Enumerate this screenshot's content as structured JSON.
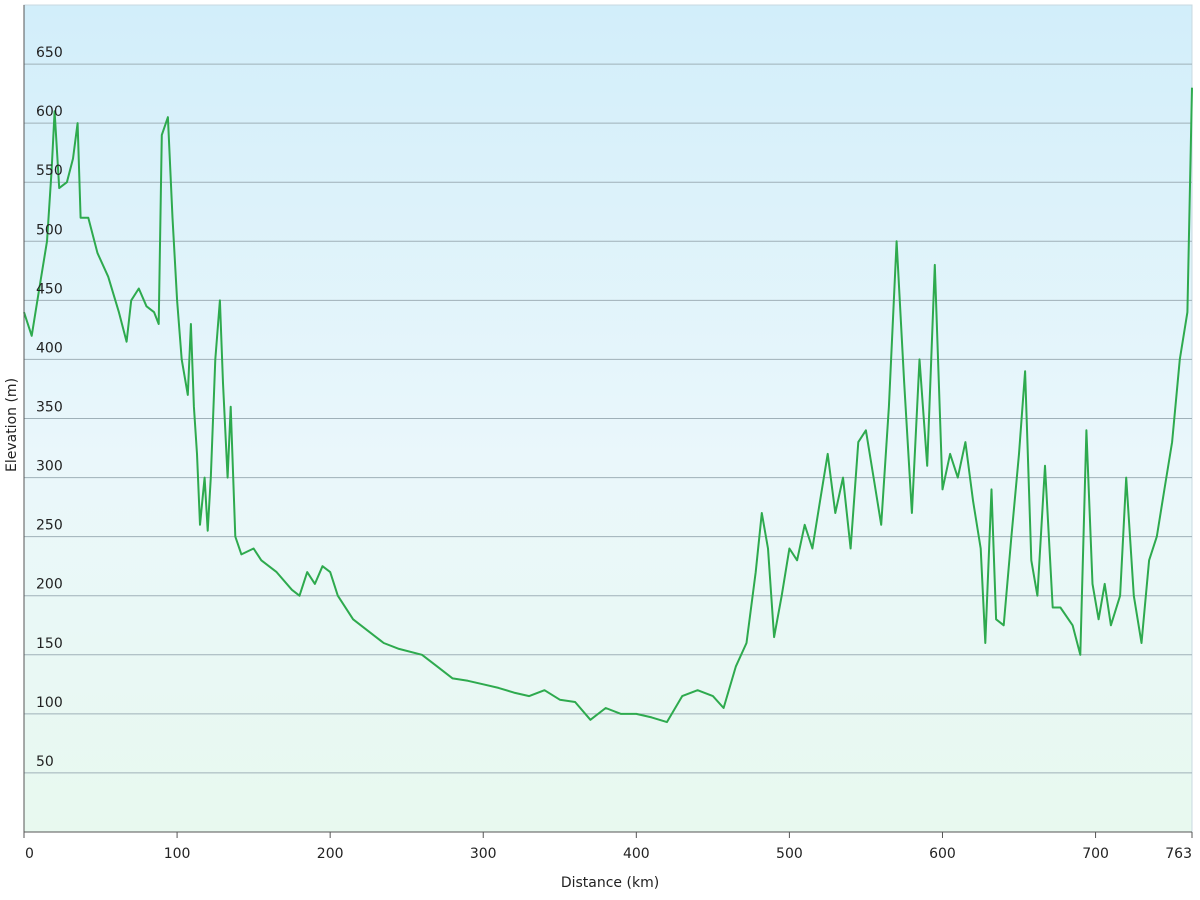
{
  "chart_data": {
    "type": "line",
    "x_label": "Distance  (km)",
    "y_label": "Elevation (m)",
    "color": "#2eaa4e",
    "grid": true,
    "xlim": [
      0,
      763
    ],
    "ylim": [
      0,
      700
    ],
    "xticks": [
      0,
      100,
      200,
      300,
      400,
      500,
      600,
      700,
      763
    ],
    "yticks": [
      50,
      100,
      150,
      200,
      250,
      300,
      350,
      400,
      450,
      500,
      550,
      600,
      650
    ],
    "x": [
      0,
      5,
      10,
      15,
      18,
      20,
      23,
      28,
      32,
      35,
      37,
      42,
      48,
      55,
      62,
      67,
      70,
      75,
      80,
      85,
      88,
      90,
      94,
      97,
      100,
      103,
      107,
      109,
      111,
      113,
      115,
      118,
      120,
      122,
      125,
      128,
      130,
      133,
      135,
      138,
      142,
      150,
      155,
      165,
      175,
      180,
      185,
      190,
      195,
      200,
      205,
      215,
      225,
      235,
      245,
      260,
      270,
      280,
      290,
      300,
      310,
      320,
      330,
      340,
      350,
      360,
      370,
      380,
      390,
      400,
      410,
      420,
      430,
      440,
      450,
      457,
      465,
      472,
      478,
      482,
      486,
      490,
      495,
      500,
      505,
      510,
      515,
      520,
      525,
      530,
      535,
      540,
      545,
      550,
      555,
      560,
      565,
      570,
      575,
      580,
      585,
      590,
      595,
      600,
      605,
      610,
      615,
      620,
      625,
      628,
      632,
      635,
      640,
      645,
      650,
      654,
      658,
      662,
      667,
      672,
      677,
      685,
      690,
      694,
      698,
      702,
      706,
      710,
      716,
      720,
      725,
      730,
      735,
      740,
      745,
      750,
      755,
      760,
      763
    ],
    "values": [
      440,
      420,
      460,
      500,
      560,
      610,
      545,
      550,
      570,
      600,
      520,
      520,
      490,
      470,
      440,
      415,
      450,
      460,
      445,
      440,
      430,
      590,
      605,
      520,
      450,
      400,
      370,
      430,
      360,
      320,
      260,
      300,
      255,
      300,
      400,
      450,
      380,
      300,
      360,
      250,
      235,
      240,
      230,
      220,
      205,
      200,
      220,
      210,
      225,
      220,
      200,
      180,
      170,
      160,
      155,
      150,
      140,
      130,
      128,
      125,
      122,
      118,
      115,
      120,
      112,
      110,
      95,
      105,
      100,
      100,
      97,
      93,
      115,
      120,
      115,
      105,
      140,
      160,
      220,
      270,
      240,
      165,
      200,
      240,
      230,
      260,
      240,
      280,
      320,
      270,
      300,
      240,
      330,
      340,
      300,
      260,
      360,
      500,
      380,
      270,
      400,
      310,
      480,
      290,
      320,
      300,
      330,
      280,
      240,
      160,
      290,
      180,
      175,
      250,
      320,
      390,
      230,
      200,
      310,
      190,
      190,
      175,
      150,
      340,
      210,
      180,
      210,
      175,
      200,
      300,
      200,
      160,
      230,
      250,
      290,
      330,
      400,
      440,
      630
    ]
  }
}
